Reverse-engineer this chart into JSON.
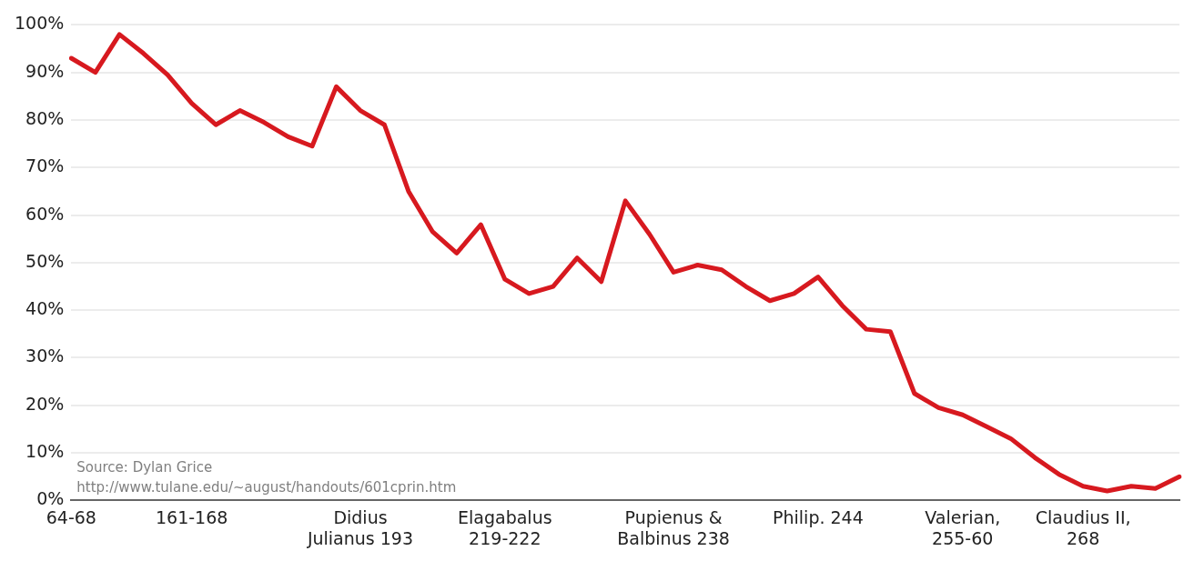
{
  "chart_data": {
    "type": "line",
    "categories": [
      "64-68",
      null,
      null,
      null,
      null,
      "161-168",
      null,
      null,
      null,
      null,
      null,
      null,
      "Didius Julianus 193",
      null,
      null,
      null,
      null,
      null,
      "Elagabalus 219-222",
      null,
      null,
      null,
      null,
      null,
      null,
      "Pupienus & Balbinus 238",
      null,
      null,
      null,
      null,
      null,
      "Philip. 244",
      null,
      null,
      null,
      null,
      null,
      "Valerian, 255-60",
      null,
      null,
      null,
      null,
      "Claudius II, 268",
      null,
      null,
      null,
      null
    ],
    "series": [
      {
        "color": "#d7191f",
        "values": [
          93,
          90,
          98,
          94,
          89.5,
          83.5,
          79,
          82,
          79.5,
          76.5,
          74.5,
          87,
          82,
          79,
          65,
          56.5,
          52,
          58,
          46.5,
          43.5,
          45,
          51,
          46,
          63,
          56,
          48,
          49.5,
          48.5,
          45,
          42,
          43.5,
          47,
          41,
          36,
          35.5,
          22.5,
          19.5,
          18,
          15.5,
          13,
          9,
          5.5,
          3,
          2,
          3,
          2.5,
          5
        ]
      }
    ],
    "ylim": [
      0,
      100
    ],
    "yticks": [
      {
        "value": 0,
        "label": "0%"
      },
      {
        "value": 10,
        "label": "10%"
      },
      {
        "value": 20,
        "label": "20%"
      },
      {
        "value": 30,
        "label": "30%"
      },
      {
        "value": 40,
        "label": "40%"
      },
      {
        "value": 50,
        "label": "50%"
      },
      {
        "value": 60,
        "label": "60%"
      },
      {
        "value": 70,
        "label": "70%"
      },
      {
        "value": 80,
        "label": "80%"
      },
      {
        "value": 90,
        "label": "90%"
      },
      {
        "value": 100,
        "label": "100%"
      }
    ],
    "grid": "y",
    "marker": "none",
    "line_style": "solid",
    "annotations": [
      "Source: Dylan Grice",
      "http://www.tulane.edu/~august/handouts/601cprin.htm"
    ]
  }
}
